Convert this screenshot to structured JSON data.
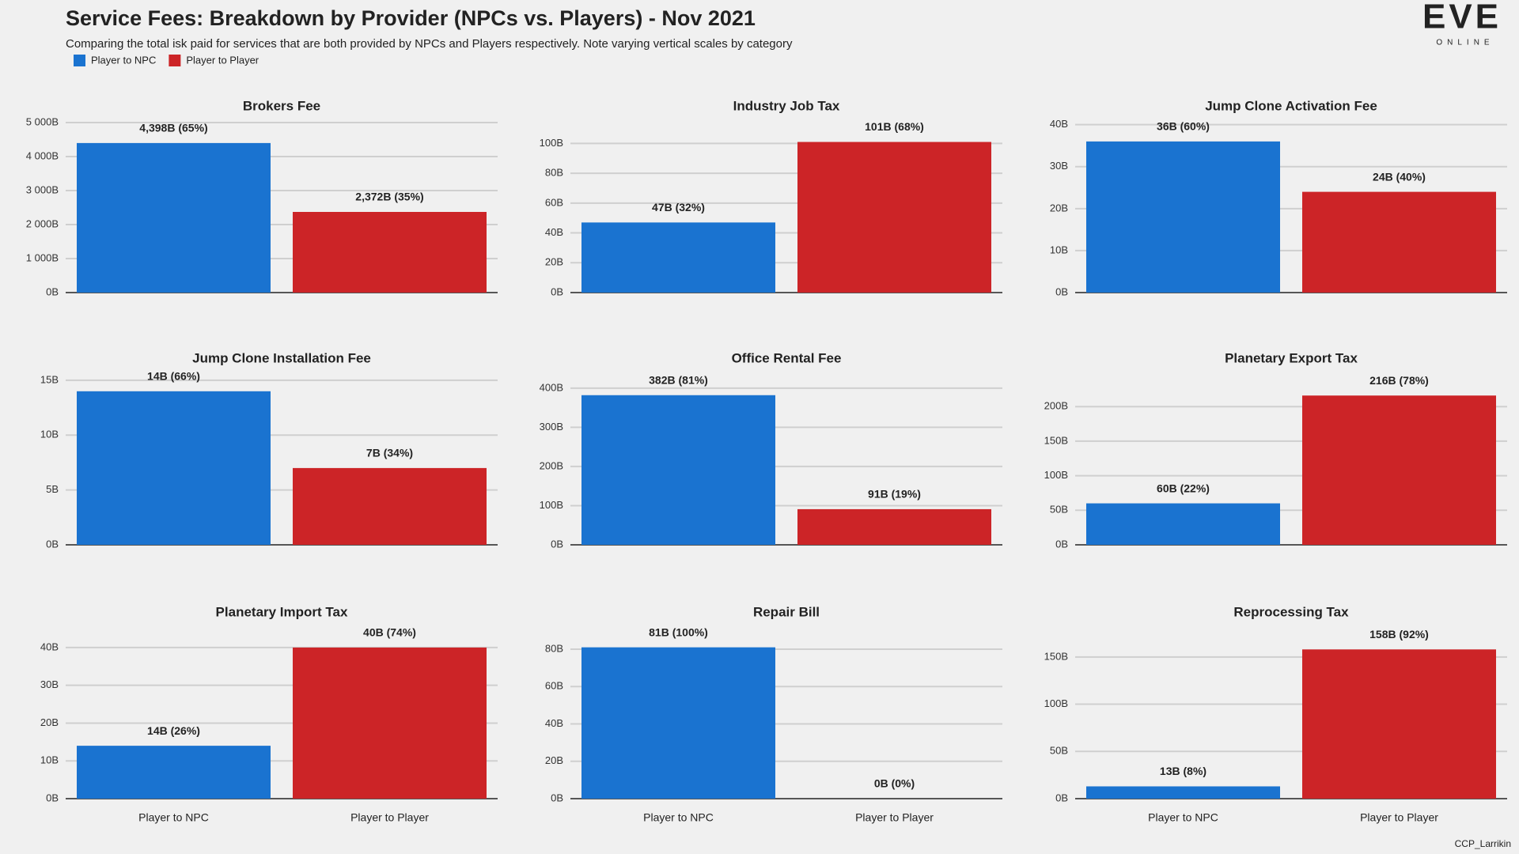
{
  "header": {
    "title": "Service Fees: Breakdown by Provider (NPCs vs. Players) - Nov 2021",
    "subtitle": "Comparing the total isk paid for services that are both provided by NPCs and Players respectively. Note varying vertical scales by category"
  },
  "legend": [
    {
      "name": "Player to NPC",
      "color": "#1a73d0"
    },
    {
      "name": "Player to Player",
      "color": "#cc2427"
    }
  ],
  "logo": {
    "name": "EVE",
    "tagline": "ONLINE"
  },
  "credit": "CCP_Larrikin",
  "chart_data": [
    {
      "type": "bar",
      "title": "Brokers Fee",
      "categories": [
        null,
        null
      ],
      "values": [
        4398,
        2372
      ],
      "value_labels": [
        "4,398B (65%)",
        "2,372B (35%)"
      ],
      "ylim": [
        0,
        5000
      ],
      "yticks": [
        {
          "value": 0,
          "label": "0B"
        },
        {
          "value": 1000,
          "label": "1 000B"
        },
        {
          "value": 2000,
          "label": "2 000B"
        },
        {
          "value": 3000,
          "label": "3 000B"
        },
        {
          "value": 4000,
          "label": "4 000B"
        },
        {
          "value": 5000,
          "label": "5 000B"
        }
      ],
      "grid": true
    },
    {
      "type": "bar",
      "title": "Industry Job Tax",
      "categories": [
        null,
        null
      ],
      "values": [
        47,
        101
      ],
      "value_labels": [
        "47B (32%)",
        "101B (68%)"
      ],
      "ylim": [
        0,
        114
      ],
      "yticks": [
        {
          "value": 0,
          "label": "0B"
        },
        {
          "value": 20,
          "label": "20B"
        },
        {
          "value": 40,
          "label": "40B"
        },
        {
          "value": 60,
          "label": "60B"
        },
        {
          "value": 80,
          "label": "80B"
        },
        {
          "value": 100,
          "label": "100B"
        }
      ],
      "grid": true
    },
    {
      "type": "bar",
      "title": "Jump Clone Activation Fee",
      "categories": [
        null,
        null
      ],
      "values": [
        36,
        24
      ],
      "value_labels": [
        "36B (60%)",
        "24B (40%)"
      ],
      "ylim": [
        0,
        40.5
      ],
      "yticks": [
        {
          "value": 0,
          "label": "0B"
        },
        {
          "value": 10,
          "label": "10B"
        },
        {
          "value": 20,
          "label": "20B"
        },
        {
          "value": 30,
          "label": "30B"
        },
        {
          "value": 40,
          "label": "40B"
        }
      ],
      "grid": true
    },
    {
      "type": "bar",
      "title": "Jump Clone Installation Fee",
      "categories": [
        null,
        null
      ],
      "values": [
        14,
        7
      ],
      "value_labels": [
        "14B (66%)",
        "7B (34%)"
      ],
      "ylim": [
        0,
        15.5
      ],
      "yticks": [
        {
          "value": 0,
          "label": "0B"
        },
        {
          "value": 5,
          "label": "5B"
        },
        {
          "value": 10,
          "label": "10B"
        },
        {
          "value": 15,
          "label": "15B"
        }
      ],
      "grid": true
    },
    {
      "type": "bar",
      "title": "Office Rental Fee",
      "categories": [
        null,
        null
      ],
      "values": [
        382,
        91
      ],
      "value_labels": [
        "382B (81%)",
        "91B (19%)"
      ],
      "ylim": [
        0,
        434
      ],
      "yticks": [
        {
          "value": 0,
          "label": "0B"
        },
        {
          "value": 100,
          "label": "100B"
        },
        {
          "value": 200,
          "label": "200B"
        },
        {
          "value": 300,
          "label": "300B"
        },
        {
          "value": 400,
          "label": "400B"
        }
      ],
      "grid": true
    },
    {
      "type": "bar",
      "title": "Planetary Export Tax",
      "categories": [
        null,
        null
      ],
      "values": [
        60,
        216
      ],
      "value_labels": [
        "60B (22%)",
        "216B (78%)"
      ],
      "ylim": [
        0,
        246
      ],
      "yticks": [
        {
          "value": 0,
          "label": "0B"
        },
        {
          "value": 50,
          "label": "50B"
        },
        {
          "value": 100,
          "label": "100B"
        },
        {
          "value": 150,
          "label": "150B"
        },
        {
          "value": 200,
          "label": "200B"
        }
      ],
      "grid": true
    },
    {
      "type": "bar",
      "title": "Planetary Import Tax",
      "categories": [
        "Player to NPC",
        "Player to Player"
      ],
      "values": [
        14,
        40
      ],
      "value_labels": [
        "14B (26%)",
        "40B (74%)"
      ],
      "ylim": [
        0,
        45
      ],
      "yticks": [
        {
          "value": 0,
          "label": "0B"
        },
        {
          "value": 10,
          "label": "10B"
        },
        {
          "value": 20,
          "label": "20B"
        },
        {
          "value": 30,
          "label": "30B"
        },
        {
          "value": 40,
          "label": "40B"
        }
      ],
      "grid": true
    },
    {
      "type": "bar",
      "title": "Repair Bill",
      "categories": [
        "Player to NPC",
        "Player to Player"
      ],
      "values": [
        81,
        0
      ],
      "value_labels": [
        "81B (100%)",
        "0B (0%)"
      ],
      "ylim": [
        0,
        91
      ],
      "yticks": [
        {
          "value": 0,
          "label": "0B"
        },
        {
          "value": 20,
          "label": "20B"
        },
        {
          "value": 40,
          "label": "40B"
        },
        {
          "value": 60,
          "label": "60B"
        },
        {
          "value": 80,
          "label": "80B"
        }
      ],
      "grid": true
    },
    {
      "type": "bar",
      "title": "Reprocessing Tax",
      "categories": [
        "Player to NPC",
        "Player to Player"
      ],
      "values": [
        13,
        158
      ],
      "value_labels": [
        "13B (8%)",
        "158B (92%)"
      ],
      "ylim": [
        0,
        180
      ],
      "yticks": [
        {
          "value": 0,
          "label": "0B"
        },
        {
          "value": 50,
          "label": "50B"
        },
        {
          "value": 100,
          "label": "100B"
        },
        {
          "value": 150,
          "label": "150B"
        }
      ],
      "grid": true
    }
  ]
}
